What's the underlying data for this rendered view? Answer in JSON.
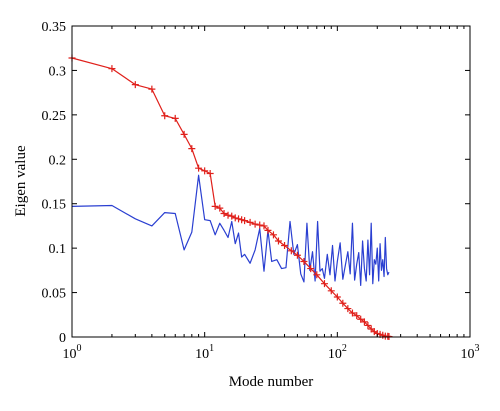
{
  "chart_data": {
    "type": "line",
    "xlabel": "Mode number",
    "ylabel": "Eigen value",
    "xscale": "log",
    "xlim": [
      1,
      1000
    ],
    "ylim": [
      0,
      0.35
    ],
    "xticks": [
      {
        "value": 1,
        "base": "10",
        "exp": "0"
      },
      {
        "value": 10,
        "base": "10",
        "exp": "1"
      },
      {
        "value": 100,
        "base": "10",
        "exp": "2"
      },
      {
        "value": 1000,
        "base": "10",
        "exp": "3"
      }
    ],
    "yticks": [
      {
        "value": 0,
        "label": "0"
      },
      {
        "value": 0.05,
        "label": "0.05"
      },
      {
        "value": 0.1,
        "label": "0.1"
      },
      {
        "value": 0.15,
        "label": "0.15"
      },
      {
        "value": 0.2,
        "label": "0.2"
      },
      {
        "value": 0.25,
        "label": "0.25"
      },
      {
        "value": 0.3,
        "label": "0.3"
      },
      {
        "value": 0.35,
        "label": "0.35"
      }
    ],
    "grid": false,
    "series": [
      {
        "color": "#2a3fd1",
        "marker": "none",
        "x": [
          1,
          2,
          3,
          4,
          5,
          6,
          7,
          8,
          9,
          10,
          11,
          12,
          13,
          14,
          15,
          16,
          17,
          18,
          19,
          20,
          22,
          24,
          26,
          28,
          30,
          32,
          35,
          38,
          41,
          44,
          47,
          50,
          53,
          56,
          59,
          62,
          65,
          68,
          71,
          74,
          77,
          80,
          84,
          88,
          92,
          96,
          100,
          105,
          110,
          115,
          120,
          125,
          130,
          135,
          140,
          145,
          150,
          155,
          160,
          165,
          170,
          175,
          180,
          185,
          190,
          195,
          200,
          205,
          210,
          215,
          220,
          225,
          230,
          235,
          240,
          245
        ],
        "y": [
          0.147,
          0.148,
          0.133,
          0.125,
          0.14,
          0.139,
          0.098,
          0.118,
          0.182,
          0.132,
          0.131,
          0.115,
          0.128,
          0.12,
          0.112,
          0.13,
          0.105,
          0.117,
          0.09,
          0.093,
          0.083,
          0.098,
          0.122,
          0.074,
          0.12,
          0.085,
          0.087,
          0.077,
          0.078,
          0.13,
          0.093,
          0.104,
          0.071,
          0.062,
          0.128,
          0.075,
          0.096,
          0.063,
          0.13,
          0.074,
          0.077,
          0.066,
          0.093,
          0.07,
          0.103,
          0.063,
          0.085,
          0.106,
          0.065,
          0.081,
          0.096,
          0.071,
          0.128,
          0.064,
          0.082,
          0.095,
          0.058,
          0.108,
          0.077,
          0.063,
          0.109,
          0.07,
          0.128,
          0.06,
          0.087,
          0.082,
          0.1,
          0.063,
          0.105,
          0.075,
          0.087,
          0.068,
          0.112,
          0.077,
          0.07,
          0.073
        ]
      },
      {
        "color": "#e0201b",
        "marker": "+",
        "x": [
          1,
          2,
          3,
          4,
          5,
          6,
          7,
          8,
          9,
          10,
          11,
          12,
          13,
          14,
          15,
          16,
          17,
          18,
          19,
          20,
          22,
          24,
          26,
          28,
          30,
          33,
          36,
          40,
          45,
          50,
          56,
          63,
          70,
          80,
          90,
          100,
          110,
          120,
          130,
          140,
          150,
          160,
          170,
          180,
          190,
          200,
          210,
          220,
          230,
          240,
          245
        ],
        "y": [
          0.314,
          0.302,
          0.284,
          0.279,
          0.249,
          0.246,
          0.228,
          0.212,
          0.19,
          0.187,
          0.184,
          0.147,
          0.145,
          0.139,
          0.137,
          0.136,
          0.134,
          0.133,
          0.132,
          0.131,
          0.129,
          0.127,
          0.126,
          0.125,
          0.12,
          0.115,
          0.108,
          0.103,
          0.097,
          0.092,
          0.085,
          0.077,
          0.07,
          0.06,
          0.052,
          0.045,
          0.038,
          0.032,
          0.027,
          0.024,
          0.02,
          0.017,
          0.013,
          0.009,
          0.006,
          0.004,
          0.003,
          0.002,
          0.001,
          0.0008,
          0.0005
        ]
      }
    ]
  }
}
